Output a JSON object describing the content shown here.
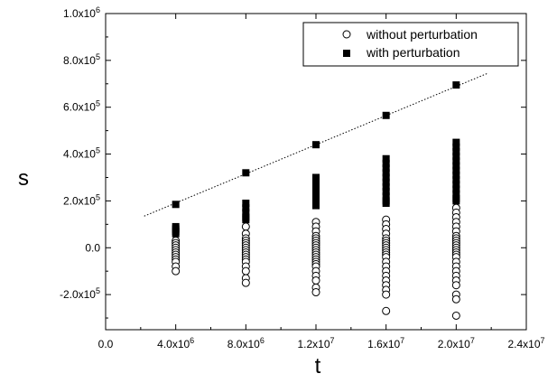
{
  "chart_data": {
    "type": "scatter",
    "title": "",
    "xlabel": "t",
    "ylabel": "s",
    "xlim": [
      0,
      24000000
    ],
    "ylim": [
      -350000,
      1000000
    ],
    "x_ticks": [
      {
        "value": 0,
        "mant": "0.0",
        "exp": ""
      },
      {
        "value": 4000000,
        "mant": "4.0x10",
        "exp": "6"
      },
      {
        "value": 8000000,
        "mant": "8.0x10",
        "exp": "6"
      },
      {
        "value": 12000000,
        "mant": "1.2x10",
        "exp": "7"
      },
      {
        "value": 16000000,
        "mant": "1.6x10",
        "exp": "7"
      },
      {
        "value": 20000000,
        "mant": "2.0x10",
        "exp": "7"
      },
      {
        "value": 24000000,
        "mant": "2.4x10",
        "exp": "7"
      }
    ],
    "y_ticks": [
      {
        "value": -200000,
        "mant": "-2.0x10",
        "exp": "5"
      },
      {
        "value": 0,
        "mant": "0.0",
        "exp": ""
      },
      {
        "value": 200000,
        "mant": "2.0x10",
        "exp": "5"
      },
      {
        "value": 400000,
        "mant": "4.0x10",
        "exp": "5"
      },
      {
        "value": 600000,
        "mant": "6.0x10",
        "exp": "5"
      },
      {
        "value": 800000,
        "mant": "8.0x10",
        "exp": "5"
      },
      {
        "value": 1000000,
        "mant": "1.0x10",
        "exp": "6"
      }
    ],
    "legend": {
      "position": "top-right"
    },
    "series": [
      {
        "name": "without perturbation",
        "marker": "open-circle",
        "groups": [
          {
            "x": 4000000,
            "y": [
              30000,
              20000,
              10000,
              0,
              -10000,
              -20000,
              -30000,
              -40000,
              -50000,
              -60000,
              -80000,
              -100000
            ]
          },
          {
            "x": 8000000,
            "y": [
              90000,
              60000,
              40000,
              30000,
              20000,
              10000,
              0,
              -10000,
              -20000,
              -30000,
              -40000,
              -50000,
              -60000,
              -80000,
              -100000,
              -130000,
              -150000
            ]
          },
          {
            "x": 12000000,
            "y": [
              110000,
              90000,
              70000,
              50000,
              40000,
              30000,
              20000,
              10000,
              0,
              -10000,
              -20000,
              -30000,
              -40000,
              -50000,
              -60000,
              -70000,
              -80000,
              -100000,
              -120000,
              -140000,
              -170000,
              -190000
            ]
          },
          {
            "x": 16000000,
            "y": [
              120000,
              100000,
              80000,
              60000,
              40000,
              30000,
              20000,
              10000,
              0,
              -10000,
              -20000,
              -30000,
              -40000,
              -60000,
              -80000,
              -100000,
              -120000,
              -140000,
              -160000,
              -180000,
              -200000,
              -270000
            ]
          },
          {
            "x": 20000000,
            "y": [
              170000,
              150000,
              130000,
              110000,
              90000,
              70000,
              50000,
              40000,
              30000,
              20000,
              10000,
              0,
              -10000,
              -20000,
              -30000,
              -40000,
              -60000,
              -80000,
              -100000,
              -120000,
              -140000,
              -160000,
              -200000,
              -220000,
              -290000
            ]
          }
        ]
      },
      {
        "name": "with perturbation",
        "marker": "filled-square",
        "groups": [
          {
            "x": 4000000,
            "y": [
              185000,
              90000,
              80000,
              70000,
              60000
            ]
          },
          {
            "x": 8000000,
            "y": [
              320000,
              190000,
              170000,
              150000,
              130000,
              120000
            ]
          },
          {
            "x": 12000000,
            "y": [
              440000,
              300000,
              280000,
              260000,
              240000,
              220000,
              200000,
              180000
            ]
          },
          {
            "x": 16000000,
            "y": [
              565000,
              380000,
              360000,
              340000,
              320000,
              300000,
              280000,
              260000,
              240000,
              220000,
              200000,
              190000
            ]
          },
          {
            "x": 20000000,
            "y": [
              695000,
              450000,
              430000,
              410000,
              390000,
              370000,
              350000,
              330000,
              310000,
              290000,
              270000,
              250000,
              230000,
              210000,
              200000
            ]
          }
        ]
      }
    ],
    "trend_line": {
      "style": "dotted",
      "from": {
        "x": 2200000,
        "y": 135000
      },
      "to": {
        "x": 21800000,
        "y": 745000
      }
    }
  }
}
